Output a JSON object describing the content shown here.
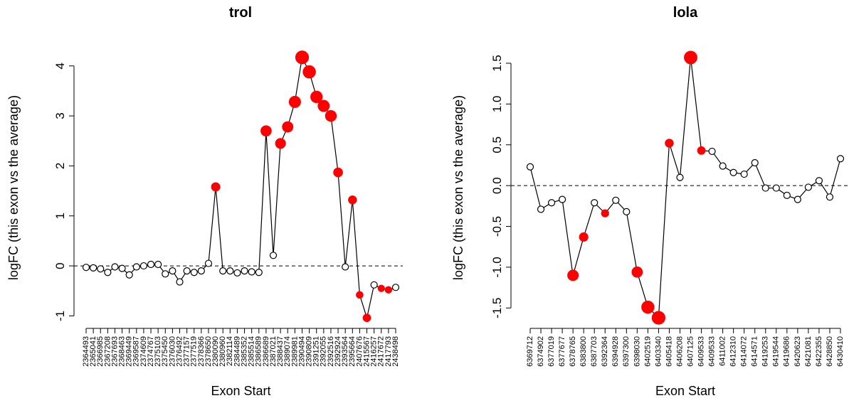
{
  "chart_data": [
    {
      "type": "scatter",
      "title": "trol",
      "x_label": "Exon Start",
      "y_label": "logFC (this exon vs the average)",
      "categories": [
        "2364493",
        "2365041",
        "2366985",
        "2367208",
        "2367693",
        "2368463",
        "2369449",
        "2369587",
        "2374609",
        "2374767",
        "2375103",
        "2375450",
        "2376030",
        "2376492",
        "2377157",
        "2377519",
        "2378366",
        "2378650",
        "2380090",
        "2380960",
        "2382114",
        "2384489",
        "2385352",
        "2385514",
        "2386589",
        "2386689",
        "2387021",
        "2388437",
        "2389074",
        "2389981",
        "2390494",
        "2390809",
        "2391251",
        "2392055",
        "2392516",
        "2392924",
        "2393564",
        "2395664",
        "2407676",
        "2415567",
        "2416257",
        "2417672",
        "2417793",
        "2438498"
      ],
      "values": [
        -0.03,
        -0.04,
        -0.06,
        -0.13,
        -0.02,
        -0.05,
        -0.18,
        -0.02,
        0.0,
        0.03,
        0.03,
        -0.16,
        -0.1,
        -0.32,
        -0.1,
        -0.13,
        -0.1,
        0.05,
        1.58,
        -0.1,
        -0.1,
        -0.14,
        -0.1,
        -0.12,
        -0.13,
        2.7,
        0.21,
        2.45,
        2.78,
        3.28,
        4.17,
        3.88,
        3.38,
        3.2,
        3.0,
        1.87,
        -0.02,
        1.32,
        -0.58,
        -1.04,
        -0.38,
        -0.45,
        -0.48,
        -0.43
      ],
      "point_colors": [
        "#ffffff",
        "#ffffff",
        "#ffffff",
        "#ffffff",
        "#ffffff",
        "#ffffff",
        "#ffffff",
        "#ffffff",
        "#ffffff",
        "#ffffff",
        "#ffffff",
        "#ffffff",
        "#ffffff",
        "#ffffff",
        "#ffffff",
        "#ffffff",
        "#ffffff",
        "#ffffff",
        "#ff0000",
        "#ffffff",
        "#ffffff",
        "#ffffff",
        "#ffffff",
        "#ffffff",
        "#ffffff",
        "#ff0000",
        "#ffffff",
        "#ff0000",
        "#ff0000",
        "#ff0000",
        "#ff0000",
        "#ff0000",
        "#ff0000",
        "#ff0000",
        "#ff0000",
        "#ff0000",
        "#ffffff",
        "#ff0000",
        "#ff0000",
        "#ff0000",
        "#ffffff",
        "#ff0000",
        "#ff0000",
        "#ffffff"
      ],
      "line_color": "#000000",
      "reference_line": 0,
      "ylim": [
        -1.25,
        4.38
      ],
      "yticks": [
        -1,
        0,
        1,
        2,
        3,
        4
      ]
    },
    {
      "type": "scatter",
      "title": "lola",
      "x_label": "Exon Start",
      "y_label": "logFC (this exon vs the average)",
      "categories": [
        "6369712",
        "6374902",
        "6377019",
        "6377677",
        "6378765",
        "6383800",
        "6387703",
        "6392364",
        "6394928",
        "6397300",
        "6398030",
        "6402519",
        "6403340",
        "6405418",
        "6406208",
        "6407125",
        "6409533",
        "6409533",
        "6411002",
        "6412310",
        "6414072",
        "6414571",
        "6419253",
        "6419544",
        "6419686",
        "6420623",
        "6421081",
        "6422355",
        "6428850",
        "6430410"
      ],
      "values": [
        0.23,
        -0.29,
        -0.21,
        -0.17,
        -1.1,
        -0.63,
        -0.21,
        -0.34,
        -0.18,
        -0.32,
        -1.06,
        -1.49,
        -1.62,
        0.52,
        0.1,
        1.57,
        0.43,
        0.42,
        0.24,
        0.16,
        0.14,
        0.28,
        -0.03,
        -0.03,
        -0.12,
        -0.17,
        -0.02,
        0.06,
        -0.14,
        0.33
      ],
      "point_colors": [
        "#ffffff",
        "#ffffff",
        "#ffffff",
        "#ffffff",
        "#ff0000",
        "#ff0000",
        "#ffffff",
        "#ff0000",
        "#ffffff",
        "#ffffff",
        "#ff0000",
        "#ff0000",
        "#ff0000",
        "#ff0000",
        "#ffffff",
        "#ff0000",
        "#ff0000",
        "#ffffff",
        "#ffffff",
        "#ffffff",
        "#ffffff",
        "#ffffff",
        "#ffffff",
        "#ffffff",
        "#ffffff",
        "#ffffff",
        "#ffffff",
        "#ffffff",
        "#ffffff",
        "#ffffff"
      ],
      "line_color": "#000000",
      "reference_line": 0,
      "ylim": [
        -1.75,
        1.7
      ],
      "yticks": [
        {
          "value": -1.5,
          "label": "-1.5"
        },
        {
          "value": -1.0,
          "label": "-1.0"
        },
        {
          "value": -0.5,
          "label": "-0.5"
        },
        {
          "value": 0,
          "label": "0.0"
        },
        {
          "value": 0.5,
          "label": "0.5"
        },
        {
          "value": 1.0,
          "label": "1.0"
        },
        {
          "value": 1.5,
          "label": "1.5"
        }
      ]
    }
  ]
}
